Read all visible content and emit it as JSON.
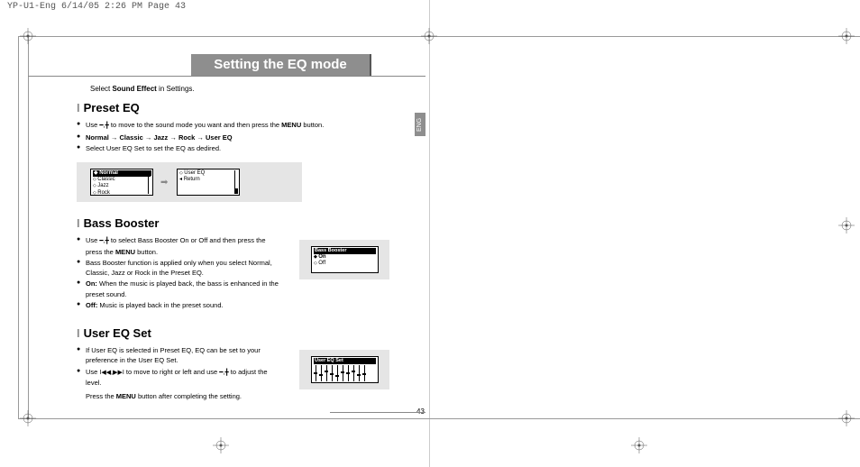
{
  "print_header": "YP-U1-Eng  6/14/05 2:26 PM  Page 43",
  "title": "Setting the EQ mode",
  "lang_tab": "ENG",
  "page_number": "43",
  "intro_prefix": "Select ",
  "intro_bold": "Sound Effect",
  "intro_suffix": " in Settings.",
  "sections": {
    "preset": {
      "title": "Preset EQ",
      "b1_a": "Use ",
      "b1_b": " to move to the sound mode you want and then press the ",
      "b1_menu": "MENU",
      "b1_c": " button.",
      "b2_parts": [
        "Normal",
        "Classic",
        "Jazz",
        "Rock",
        "User EQ"
      ],
      "b3": "Select User EQ Set to set the EQ as dedired."
    },
    "bass": {
      "title": "Bass Booster",
      "b1_a": "Use ",
      "b1_b": " to select Bass Booster On or Off and then press the ",
      "b1_menu": "MENU",
      "b1_c": " button.",
      "b2": "Bass Booster function is applied only when you select Normal, Classic, Jazz or Rock in the Preset EQ.",
      "b3_label": "On:",
      "b3_text": " When the music is played back, the bass is enhanced in the preset sound.",
      "b4_label": "Off:",
      "b4_text": " Music is played back in the preset sound."
    },
    "usereq": {
      "title": "User EQ Set",
      "b1": "If User EQ is selected in Preset EQ, EQ can be set to your preference in the User EQ Set.",
      "b2_a": "Use ",
      "b2_b": " to move to right or left and use ",
      "b2_c": " to adjust the level.",
      "b2_d_a": "Press the ",
      "b2_d_menu": "MENU",
      "b2_d_b": " button after completing the setting."
    }
  },
  "lcd": {
    "preset_left": {
      "sel": "Normal",
      "items": [
        "Classic",
        "Jazz",
        "Rock"
      ]
    },
    "preset_right": {
      "items": [
        "User EQ",
        "Return"
      ]
    },
    "bass": {
      "header": "Bass Booster",
      "sel": "On",
      "items": [
        "Off"
      ]
    },
    "usereq": {
      "header": "User EQ Set",
      "knobs": [
        8,
        10,
        6,
        9,
        11,
        7,
        8,
        6,
        10,
        9
      ]
    }
  },
  "colors": {
    "title_bg": "#8e8e8e",
    "panel_bg": "#e5e5e5",
    "rule": "#888888"
  }
}
